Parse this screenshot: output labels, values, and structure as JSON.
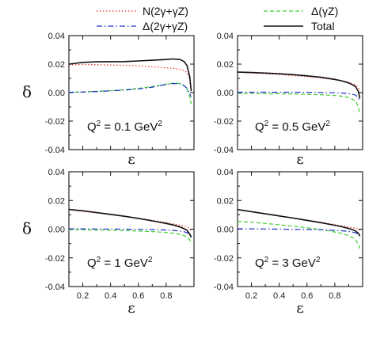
{
  "colors": {
    "N": "#e8302a",
    "Delta": "#2233cc",
    "DeltaGZ": "#3fcc2e",
    "Total": "#111111"
  },
  "legend": {
    "N": "N(2γ+γZ)",
    "Delta": "Δ(2γ+γZ)",
    "DeltaGZ": "Δ(γZ)",
    "Total": "Total"
  },
  "chart_data": [
    {
      "type": "line",
      "panel_label": "Q² = 0.1 GeV²",
      "q2": "0.1",
      "xlabel": "ε",
      "ylabel": "δ",
      "xlim": [
        0.1,
        1.0
      ],
      "ylim": [
        -0.04,
        0.04
      ],
      "yticks": [
        "0.04",
        "0.02",
        "0.00",
        "-0.02",
        "-0.04"
      ],
      "x": [
        0.1,
        0.2,
        0.3,
        0.4,
        0.5,
        0.6,
        0.7,
        0.8,
        0.85,
        0.9,
        0.93,
        0.95,
        0.97,
        0.98
      ],
      "series": [
        {
          "key": "N",
          "values": [
            0.0195,
            0.0197,
            0.0196,
            0.0194,
            0.0191,
            0.0187,
            0.0181,
            0.0174,
            0.017,
            0.0163,
            0.0155,
            0.014,
            0.0095,
            0.001
          ]
        },
        {
          "key": "Delta",
          "values": [
            0.0002,
            0.0004,
            0.0008,
            0.0012,
            0.0018,
            0.0026,
            0.0038,
            0.0058,
            0.0064,
            0.0061,
            0.0048,
            0.003,
            -0.001,
            -0.003
          ]
        },
        {
          "key": "DeltaGZ",
          "values": [
            0.0002,
            0.0005,
            0.0009,
            0.0014,
            0.002,
            0.003,
            0.0043,
            0.006,
            0.0066,
            0.0064,
            0.005,
            0.0025,
            -0.003,
            -0.008
          ]
        },
        {
          "key": "Total",
          "values": [
            0.02,
            0.0212,
            0.0216,
            0.0217,
            0.0218,
            0.0222,
            0.0227,
            0.0232,
            0.0236,
            0.0232,
            0.0218,
            0.019,
            0.011,
            0.001
          ]
        }
      ]
    },
    {
      "type": "line",
      "panel_label": "Q² = 0.5 GeV²",
      "q2": "0.5",
      "xlabel": "ε",
      "ylabel": "δ",
      "xlim": [
        0.1,
        1.0
      ],
      "ylim": [
        -0.04,
        0.04
      ],
      "yticks": [
        "0.04",
        "0.02",
        "0.00",
        "-0.02",
        "-0.04"
      ],
      "x": [
        0.1,
        0.2,
        0.3,
        0.4,
        0.5,
        0.6,
        0.7,
        0.8,
        0.85,
        0.9,
        0.93,
        0.95,
        0.97,
        0.98
      ],
      "series": [
        {
          "key": "N",
          "values": [
            0.0142,
            0.0138,
            0.0133,
            0.0127,
            0.012,
            0.0112,
            0.0102,
            0.009,
            0.0082,
            0.0072,
            0.0063,
            0.0054,
            0.0035,
            0.0015
          ]
        },
        {
          "key": "Delta",
          "values": [
            0.0003,
            0.0003,
            0.0003,
            0.0003,
            0.0003,
            0.0002,
            0.0001,
            -0.0001,
            -0.0003,
            -0.0007,
            -0.0012,
            -0.0018,
            -0.0035,
            -0.006
          ]
        },
        {
          "key": "DeltaGZ",
          "values": [
            -0.0005,
            -0.0006,
            -0.0007,
            -0.0008,
            -0.001,
            -0.0012,
            -0.0015,
            -0.002,
            -0.0025,
            -0.0035,
            -0.0048,
            -0.006,
            -0.01,
            -0.015
          ]
        },
        {
          "key": "Total",
          "values": [
            0.0144,
            0.0141,
            0.0137,
            0.0132,
            0.0126,
            0.0118,
            0.0108,
            0.0093,
            0.0083,
            0.0068,
            0.0054,
            0.0041,
            0.0008,
            -0.004
          ]
        }
      ]
    },
    {
      "type": "line",
      "panel_label": "Q² = 1 GeV²",
      "q2": "1",
      "xlabel": "ε",
      "ylabel": "δ",
      "xlim": [
        0.1,
        1.0
      ],
      "ylim": [
        -0.04,
        0.04
      ],
      "yticks": [
        "0.04",
        "0.02",
        "0.00",
        "-0.02",
        "-0.04"
      ],
      "xticks": [
        "0.2",
        "0.4",
        "0.6",
        "0.8"
      ],
      "x": [
        0.1,
        0.2,
        0.3,
        0.4,
        0.5,
        0.6,
        0.7,
        0.8,
        0.85,
        0.9,
        0.93,
        0.95,
        0.97,
        0.98
      ],
      "series": [
        {
          "key": "N",
          "values": [
            0.0135,
            0.0124,
            0.0113,
            0.0101,
            0.0089,
            0.0076,
            0.0061,
            0.0046,
            0.0037,
            0.0027,
            0.002,
            0.0016,
            0.0005,
            -0.002
          ]
        },
        {
          "key": "Delta",
          "values": [
            0.0002,
            0.0002,
            0.0001,
            0.0001,
            0.0,
            -0.0001,
            -0.0003,
            -0.0006,
            -0.0009,
            -0.0013,
            -0.0018,
            -0.0025,
            -0.0038,
            -0.0048
          ]
        },
        {
          "key": "DeltaGZ",
          "values": [
            -0.0004,
            -0.0005,
            -0.0006,
            -0.0008,
            -0.001,
            -0.0013,
            -0.0017,
            -0.0023,
            -0.0028,
            -0.0036,
            -0.0045,
            -0.0055,
            -0.0075,
            -0.009
          ]
        },
        {
          "key": "Total",
          "values": [
            0.0138,
            0.0128,
            0.0116,
            0.0103,
            0.009,
            0.0075,
            0.0058,
            0.004,
            0.0029,
            0.0015,
            0.0003,
            -0.0008,
            -0.0035,
            -0.0058
          ]
        }
      ]
    },
    {
      "type": "line",
      "panel_label": "Q² = 3 GeV²",
      "q2": "3",
      "xlabel": "ε",
      "ylabel": "δ",
      "xlim": [
        0.1,
        1.0
      ],
      "ylim": [
        -0.04,
        0.04
      ],
      "yticks": [
        "0.04",
        "0.02",
        "0.00",
        "-0.02",
        "-0.04"
      ],
      "xticks": [
        "0.2",
        "0.4",
        "0.6",
        "0.8"
      ],
      "x": [
        0.1,
        0.2,
        0.3,
        0.4,
        0.5,
        0.6,
        0.7,
        0.8,
        0.85,
        0.9,
        0.93,
        0.95,
        0.97,
        0.98
      ],
      "series": [
        {
          "key": "N",
          "values": [
            0.0135,
            0.0121,
            0.0107,
            0.0093,
            0.0079,
            0.0064,
            0.0048,
            0.0031,
            0.0022,
            0.0014,
            0.0009,
            0.0006,
            0.0002,
            -0.001
          ]
        },
        {
          "key": "Delta",
          "values": [
            0.0003,
            0.0002,
            0.0001,
            0.0,
            -0.0001,
            -0.0002,
            -0.0004,
            -0.0008,
            -0.0011,
            -0.0016,
            -0.0021,
            -0.0026,
            -0.0036,
            -0.0045
          ]
        },
        {
          "key": "DeltaGZ",
          "values": [
            0.0055,
            0.0048,
            0.004,
            0.0031,
            0.0021,
            0.001,
            -0.0003,
            -0.002,
            -0.003,
            -0.0045,
            -0.006,
            -0.0075,
            -0.0105,
            -0.0135
          ]
        },
        {
          "key": "Total",
          "values": [
            0.0137,
            0.0122,
            0.0107,
            0.0092,
            0.0077,
            0.0061,
            0.0045,
            0.0027,
            0.0017,
            0.0005,
            -0.0005,
            -0.0013,
            -0.003,
            -0.0048
          ]
        }
      ]
    }
  ]
}
